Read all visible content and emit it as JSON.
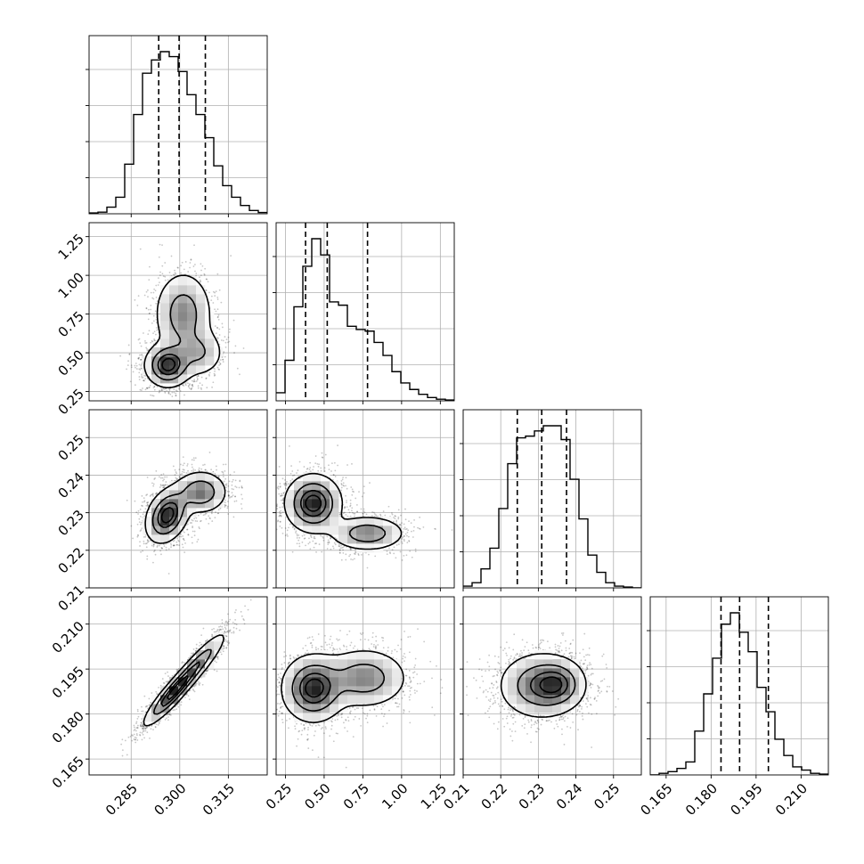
{
  "chart_data": {
    "type": "corner",
    "parameters": 4,
    "grid": true,
    "quantiles": [
      0.16,
      0.5,
      0.84
    ],
    "axes": [
      {
        "index": 0,
        "range": [
          0.272,
          0.327
        ],
        "ticks": [
          0.285,
          0.3,
          0.315
        ],
        "tick_labels": [
          "0.285",
          "0.300",
          "0.315"
        ],
        "quantile_values": [
          0.2935,
          0.2998,
          0.3079
        ]
      },
      {
        "index": 1,
        "range": [
          0.19,
          1.34
        ],
        "ticks": [
          0.25,
          0.5,
          0.75,
          1.0,
          1.25
        ],
        "tick_labels": [
          "0.25",
          "0.50",
          "0.75",
          "1.00",
          "1.25"
        ],
        "quantile_values": [
          0.38,
          0.52,
          0.78
        ]
      },
      {
        "index": 2,
        "range": [
          0.21,
          0.2574
        ],
        "ticks": [
          0.21,
          0.22,
          0.23,
          0.24,
          0.25
        ],
        "tick_labels": [
          "0.21",
          "0.22",
          "0.23",
          "0.24",
          "0.25"
        ],
        "quantile_values": [
          0.2244,
          0.2309,
          0.2375
        ]
      },
      {
        "index": 3,
        "range": [
          0.1597,
          0.2191
        ],
        "ticks": [
          0.165,
          0.18,
          0.195,
          0.21
        ],
        "tick_labels": [
          "0.165",
          "0.180",
          "0.195",
          "0.210"
        ],
        "quantile_values": [
          0.1833,
          0.1895,
          0.1991
        ]
      }
    ],
    "histograms": [
      {
        "param": 0,
        "relative_heights": [
          0.005,
          0.01,
          0.04,
          0.1,
          0.3,
          0.6,
          0.85,
          0.93,
          0.98,
          0.95,
          0.86,
          0.72,
          0.6,
          0.46,
          0.29,
          0.17,
          0.1,
          0.05,
          0.02,
          0.008
        ]
      },
      {
        "param": 1,
        "relative_heights": [
          0.05,
          0.25,
          0.58,
          0.83,
          1.0,
          0.9,
          0.61,
          0.59,
          0.46,
          0.44,
          0.43,
          0.36,
          0.28,
          0.18,
          0.11,
          0.07,
          0.04,
          0.02,
          0.01,
          0.005
        ]
      },
      {
        "param": 2,
        "relative_heights": [
          0.01,
          0.03,
          0.11,
          0.23,
          0.46,
          0.72,
          0.87,
          0.88,
          0.91,
          0.94,
          0.94,
          0.86,
          0.63,
          0.4,
          0.19,
          0.09,
          0.03,
          0.01,
          0.005,
          0.0
        ]
      },
      {
        "param": 3,
        "relative_heights": [
          0.0,
          0.01,
          0.02,
          0.04,
          0.08,
          0.27,
          0.5,
          0.72,
          0.93,
          1.0,
          0.88,
          0.76,
          0.54,
          0.39,
          0.22,
          0.12,
          0.05,
          0.03,
          0.01,
          0.005
        ]
      }
    ],
    "contour_components": [
      {
        "x": 1,
        "y": 0,
        "mixture": [
          {
            "mx": 0.2963,
            "my": 0.42,
            "sx": 0.0035,
            "sy": 0.07,
            "rho": 0.0,
            "w": 0.5
          },
          {
            "mx": 0.3011,
            "my": 0.75,
            "sx": 0.0045,
            "sy": 0.14,
            "rho": 0.0,
            "w": 0.3
          },
          {
            "mx": 0.306,
            "my": 0.5,
            "sx": 0.004,
            "sy": 0.08,
            "rho": 0.0,
            "w": 0.2
          }
        ]
      },
      {
        "x": 2,
        "y": 0,
        "mixture": [
          {
            "mx": 0.2962,
            "my": 0.2293,
            "sx": 0.0033,
            "sy": 0.0036,
            "rho": 0.3,
            "w": 0.6
          },
          {
            "mx": 0.3065,
            "my": 0.2355,
            "sx": 0.004,
            "sy": 0.0028,
            "rho": 0.0,
            "w": 0.4
          }
        ]
      },
      {
        "x": 2,
        "y": 1,
        "mixture": [
          {
            "mx": 0.43,
            "my": 0.2325,
            "sx": 0.09,
            "sy": 0.0038,
            "rho": 0.0,
            "w": 0.62
          },
          {
            "mx": 0.78,
            "my": 0.2245,
            "sx": 0.12,
            "sy": 0.0023,
            "rho": 0.0,
            "w": 0.38
          }
        ]
      },
      {
        "x": 3,
        "y": 0,
        "mixture": [
          {
            "mx": 0.2975,
            "my": 0.1865,
            "sx": 0.0043,
            "sy": 0.0052,
            "rho": 0.9,
            "w": 0.6
          },
          {
            "mx": 0.3055,
            "my": 0.1965,
            "sx": 0.0045,
            "sy": 0.0055,
            "rho": 0.9,
            "w": 0.4
          }
        ]
      },
      {
        "x": 3,
        "y": 1,
        "mixture": [
          {
            "mx": 0.43,
            "my": 0.1885,
            "sx": 0.1,
            "sy": 0.0055,
            "rho": 0.0,
            "w": 0.62
          },
          {
            "mx": 0.76,
            "my": 0.192,
            "sx": 0.14,
            "sy": 0.005,
            "rho": 0.0,
            "w": 0.38
          }
        ]
      },
      {
        "x": 3,
        "y": 2,
        "mixture": [
          {
            "mx": 0.2305,
            "my": 0.1895,
            "sx": 0.0055,
            "sy": 0.0055,
            "rho": 0.0,
            "w": 0.6
          },
          {
            "mx": 0.2355,
            "my": 0.19,
            "sx": 0.0035,
            "sy": 0.004,
            "rho": 0.0,
            "w": 0.4
          }
        ]
      }
    ],
    "contour_levels": [
      0.118,
      0.393,
      0.675,
      0.865
    ]
  }
}
